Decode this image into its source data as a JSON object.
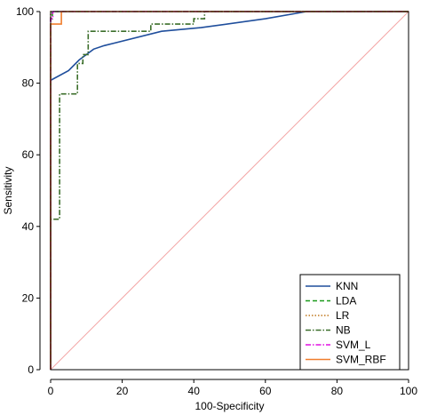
{
  "chart_data": {
    "type": "line",
    "title": "",
    "xlabel": "100-Specificity",
    "ylabel": "Sensitivity",
    "xlim": [
      0,
      100
    ],
    "ylim": [
      0,
      100
    ],
    "xticks": [
      0,
      20,
      40,
      60,
      80,
      100
    ],
    "yticks": [
      0,
      20,
      40,
      60,
      80,
      100
    ],
    "grid": false,
    "legend_position": "bottom-right",
    "reference_line": {
      "x": [
        0,
        100
      ],
      "y": [
        0,
        100
      ],
      "color": "#f4a6a6"
    },
    "series": [
      {
        "name": "KNN",
        "color": "#1f4e9c",
        "dash": "solid",
        "x": [
          0,
          0,
          5,
          8,
          10,
          12,
          15,
          31,
          42,
          60,
          71.5,
          100
        ],
        "y": [
          0,
          80.8,
          83.5,
          86.5,
          88,
          89.5,
          90.5,
          94.5,
          95.5,
          98,
          100,
          100
        ]
      },
      {
        "name": "LDA",
        "color": "#1a9a1a",
        "dash": "dashed",
        "x": [
          0,
          0,
          0,
          0.5,
          0.5,
          3,
          3,
          100
        ],
        "y": [
          0,
          42,
          98,
          98,
          100,
          100,
          100,
          100
        ]
      },
      {
        "name": "LR",
        "color": "#c0781e",
        "dash": "dotted",
        "x": [
          0,
          0,
          100
        ],
        "y": [
          0,
          100,
          100
        ]
      },
      {
        "name": "NB",
        "color": "#3b6e2a",
        "dash": "dashdot",
        "x": [
          0,
          0,
          2.5,
          2.5,
          7.5,
          7.5,
          9,
          9,
          10.5,
          10.5,
          28,
          28,
          40,
          40,
          43,
          43,
          100
        ],
        "y": [
          0,
          42,
          42,
          77,
          77,
          85.5,
          85.5,
          88,
          88,
          94.5,
          94.5,
          96.5,
          96.5,
          98,
          98,
          100,
          100
        ]
      },
      {
        "name": "SVM_L",
        "color": "#e010e0",
        "dash": "dashdot",
        "x": [
          0,
          0,
          0.6,
          0.6,
          100
        ],
        "y": [
          0,
          98,
          98,
          100,
          100
        ]
      },
      {
        "name": "SVM_RBF",
        "color": "#f07e2e",
        "dash": "solid",
        "x": [
          0,
          0,
          3,
          3,
          100
        ],
        "y": [
          0,
          96.5,
          96.5,
          100,
          100
        ]
      }
    ]
  }
}
